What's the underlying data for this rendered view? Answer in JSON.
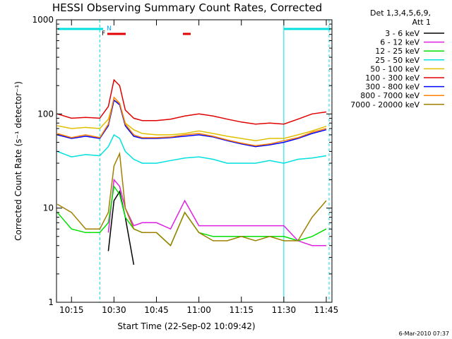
{
  "chart_data": {
    "type": "line",
    "title": "HESSI Observing Summary Count Rates, Corrected",
    "xlabel": "Start Time (22-Sep-02 10:09:42)",
    "ylabel": "Corrected Count Rate (s⁻¹ detector⁻¹)",
    "yscale": "log",
    "ylim": [
      1,
      1000
    ],
    "xlim": [
      "10:09:42",
      "11:47:00"
    ],
    "x_ticks": [
      "10:15",
      "10:30",
      "10:45",
      "11:00",
      "11:15",
      "11:30",
      "11:45"
    ],
    "y_ticks": [
      "1",
      "10",
      "100",
      "1000"
    ],
    "grid": false,
    "legend_position": "right",
    "legend_header": [
      "Det 1,3,4,5,6,9,",
      "Att 1"
    ],
    "x": [
      "10:10",
      "10:15",
      "10:20",
      "10:25",
      "10:28",
      "10:30",
      "10:32",
      "10:34",
      "10:37",
      "10:40",
      "10:45",
      "10:50",
      "10:55",
      "11:00",
      "11:05",
      "11:10",
      "11:15",
      "11:20",
      "11:25",
      "11:30",
      "11:35",
      "11:40",
      "11:45"
    ],
    "series": [
      {
        "name": "3 - 6 keV",
        "color": "#000000",
        "values": [
          null,
          null,
          null,
          null,
          3.5,
          12,
          15,
          8,
          2.5,
          null,
          null,
          null,
          null,
          null,
          null,
          null,
          null,
          null,
          null,
          null,
          null,
          null,
          null
        ]
      },
      {
        "name": "6 - 12 keV",
        "color": "#e020e0",
        "values": [
          null,
          null,
          null,
          null,
          5.5,
          20,
          17,
          10,
          6.5,
          7,
          7,
          6,
          12,
          6.5,
          6.5,
          6.5,
          6.5,
          6.5,
          6.5,
          6.5,
          4.5,
          4,
          4
        ]
      },
      {
        "name": "12 - 25 keV",
        "color": "#00e000",
        "values": [
          9,
          6,
          5.5,
          5.5,
          7,
          17,
          14,
          8,
          6,
          5.5,
          5.5,
          4,
          9,
          5.5,
          5,
          5,
          5,
          5,
          5,
          5,
          4.5,
          5,
          6
        ]
      },
      {
        "name": "25 - 50 keV",
        "color": "#00e0e0",
        "values": [
          40,
          35,
          37,
          36,
          45,
          60,
          55,
          40,
          33,
          30,
          30,
          32,
          34,
          35,
          33,
          30,
          30,
          30,
          32,
          30,
          33,
          34,
          36
        ]
      },
      {
        "name": "50 - 100 keV",
        "color": "#e0c000",
        "values": [
          75,
          70,
          72,
          70,
          88,
          140,
          130,
          80,
          68,
          62,
          60,
          60,
          62,
          66,
          62,
          58,
          55,
          52,
          55,
          55,
          60,
          66,
          74
        ]
      },
      {
        "name": "100 - 300 keV",
        "color": "#e00000",
        "values": [
          100,
          90,
          92,
          90,
          120,
          230,
          200,
          110,
          90,
          85,
          85,
          88,
          95,
          100,
          95,
          88,
          82,
          78,
          80,
          78,
          88,
          100,
          105
        ]
      },
      {
        "name": "300 - 800 keV",
        "color": "#0000ff",
        "values": [
          60,
          55,
          58,
          55,
          75,
          140,
          125,
          75,
          58,
          55,
          55,
          56,
          58,
          60,
          57,
          52,
          48,
          45,
          47,
          50,
          55,
          62,
          68
        ]
      },
      {
        "name": "800 - 7000 keV",
        "color": "#ff8000",
        "values": [
          62,
          56,
          60,
          56,
          78,
          150,
          130,
          78,
          60,
          56,
          56,
          57,
          60,
          62,
          58,
          53,
          49,
          46,
          48,
          52,
          56,
          64,
          70
        ]
      },
      {
        "name": "7000 - 20000 keV",
        "color": "#a08000",
        "values": [
          11,
          9,
          6,
          6,
          9,
          28,
          38,
          10,
          6,
          5.5,
          5.5,
          4,
          9,
          5.5,
          4.5,
          4.5,
          5,
          4.5,
          5,
          4.5,
          4.5,
          8,
          12
        ]
      }
    ],
    "annotations": {
      "flag_labels": [
        "F",
        "N"
      ],
      "vertical_lines_x": [
        "10:25",
        "11:30",
        "11:46"
      ]
    }
  },
  "timestamp": "6-Mar-2010 07:37"
}
